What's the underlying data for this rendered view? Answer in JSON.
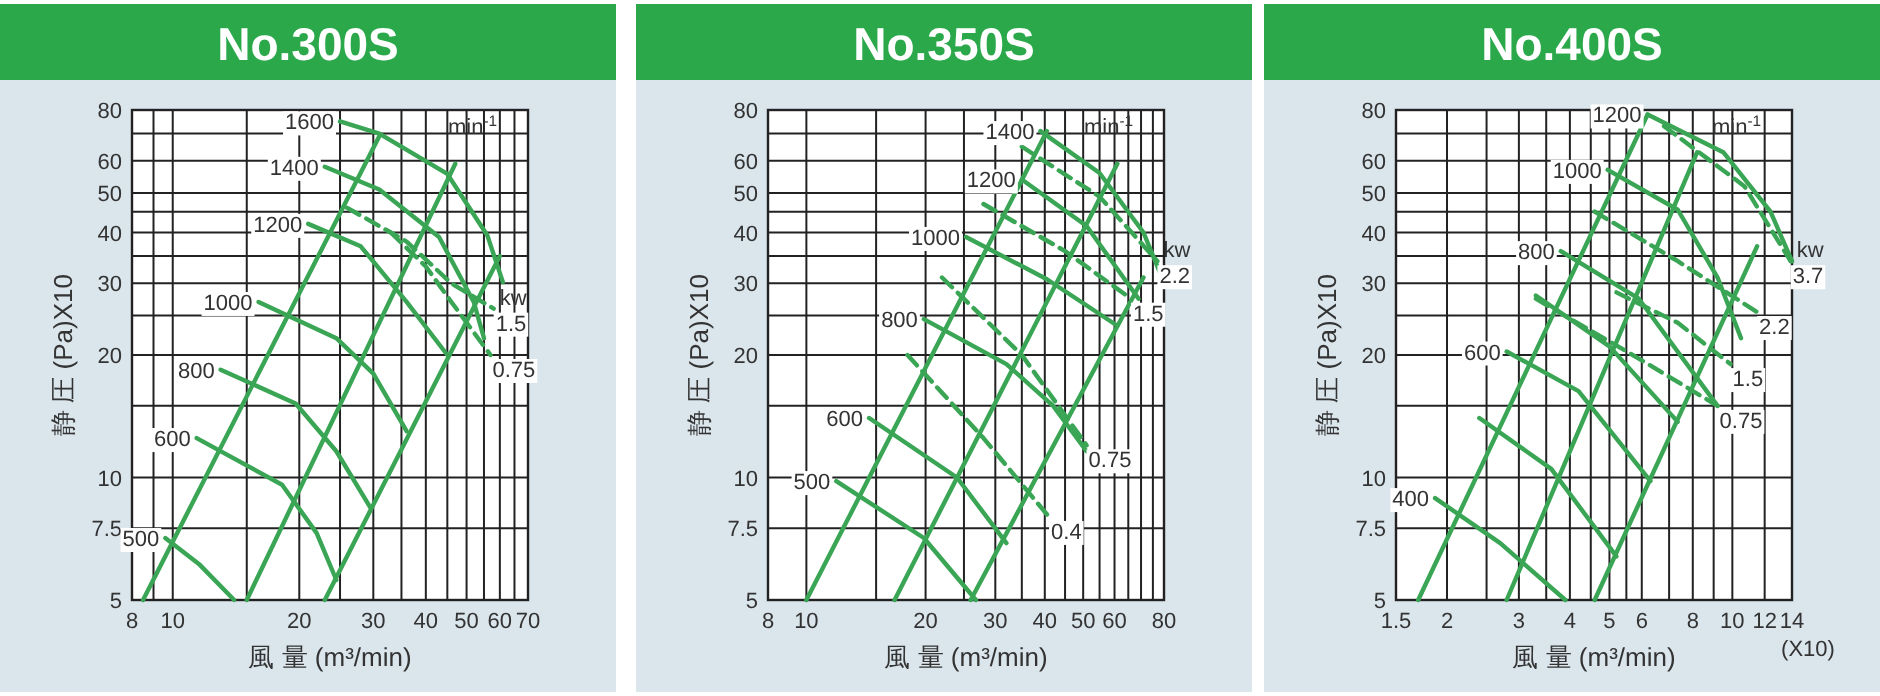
{
  "chart_data": [
    {
      "type": "line",
      "title": "No.300S",
      "xlabel": "風 量 (m³/min)",
      "ylabel": "静 圧 (Pa)X10",
      "log": "xy",
      "grid": true,
      "xlim": [
        8,
        70
      ],
      "xticks": [
        8,
        {
          "value": 9,
          "label": null
        },
        10,
        {
          "value": 15,
          "label": null
        },
        20,
        {
          "value": 25,
          "label": null
        },
        30,
        {
          "value": 35,
          "label": null
        },
        40,
        {
          "value": 45,
          "label": null
        },
        50,
        {
          "value": 55,
          "label": null
        },
        60,
        {
          "value": 65,
          "label": null
        },
        70
      ],
      "ylim": [
        5,
        80
      ],
      "yticks": [
        5,
        7.5,
        10,
        {
          "value": 15,
          "label": null
        },
        20,
        {
          "value": 25,
          "label": null
        },
        30,
        {
          "value": 35,
          "label": null
        },
        40,
        {
          "value": 45,
          "label": null
        },
        50,
        60,
        {
          "value": 70,
          "label": null
        },
        80
      ],
      "annotations": [
        "min$^{-1}$",
        "kw"
      ],
      "series": [
        {
          "name": "1600",
          "color": "#3aa655",
          "line_style": "solid",
          "x": [
            25,
            31,
            45,
            56,
            61
          ],
          "values": [
            75,
            70,
            55.7,
            39.4,
            30.2
          ]
        },
        {
          "name": "1400",
          "color": "#3aa655",
          "line_style": "solid",
          "x": [
            23,
            31,
            43,
            52,
            55
          ],
          "values": [
            58,
            51,
            39,
            27,
            22
          ]
        },
        {
          "name": "1200",
          "color": "#3aa655",
          "line_style": "solid",
          "x": [
            21,
            28,
            36,
            45
          ],
          "values": [
            42,
            37,
            27,
            20
          ]
        },
        {
          "name": "1000",
          "color": "#3aa655",
          "line_style": "solid",
          "x": [
            16,
            24.5,
            30,
            36
          ],
          "values": [
            27,
            22,
            18,
            13
          ]
        },
        {
          "name": "800",
          "color": "#3aa655",
          "line_style": "solid",
          "x": [
            13,
            19.6,
            24.5,
            29.6
          ],
          "values": [
            18.4,
            15.2,
            11.6,
            8.4
          ]
        },
        {
          "name": "600",
          "color": "#3aa655",
          "line_style": "solid",
          "x": [
            11.4,
            18.2,
            22,
            24.5
          ],
          "values": [
            12.5,
            9.6,
            7.3,
            5.6
          ]
        },
        {
          "name": "500",
          "color": "#3aa655",
          "line_style": "solid",
          "x": [
            9.6,
            11.6,
            14
          ],
          "values": [
            7.1,
            6.1,
            5
          ]
        },
        {
          "color": "#3aa655",
          "line_style": "solid",
          "x": [
            8.5,
            31
          ],
          "values": [
            5,
            69
          ]
        },
        {
          "color": "#3aa655",
          "line_style": "solid",
          "x": [
            15,
            47
          ],
          "values": [
            5,
            59
          ]
        },
        {
          "color": "#3aa655",
          "line_style": "solid",
          "x": [
            23,
            60
          ],
          "values": [
            5,
            35
          ]
        },
        {
          "name": "1.5",
          "color": "#3aa655",
          "line_style": "dashed",
          "x": [
            26,
            36,
            46,
            58
          ],
          "values": [
            46,
            38,
            30,
            26
          ]
        },
        {
          "name": "0.75",
          "color": "#3aa655",
          "line_style": "dashed",
          "x": [
            33,
            40,
            46,
            57
          ],
          "values": [
            40,
            33,
            27,
            20
          ]
        }
      ]
    },
    {
      "type": "line",
      "title": "No.350S",
      "xlabel": "風 量 (m³/min)",
      "ylabel": "静 圧 (Pa)X10",
      "log": "xy",
      "grid": true,
      "xlim": [
        8,
        80
      ],
      "xticks": [
        8,
        10,
        {
          "value": 15,
          "label": null
        },
        20,
        {
          "value": 25,
          "label": null
        },
        30,
        {
          "value": 35,
          "label": null
        },
        40,
        {
          "value": 45,
          "label": null
        },
        50,
        {
          "value": 55,
          "label": null
        },
        60,
        {
          "value": 65,
          "label": null
        },
        {
          "value": 70,
          "label": null
        },
        {
          "value": 75,
          "label": null
        },
        80
      ],
      "ylim": [
        5,
        80
      ],
      "yticks": [
        5,
        7.5,
        10,
        {
          "value": 15,
          "label": null
        },
        20,
        {
          "value": 25,
          "label": null
        },
        30,
        {
          "value": 35,
          "label": null
        },
        40,
        {
          "value": 45,
          "label": null
        },
        50,
        60,
        {
          "value": 70,
          "label": null
        },
        80
      ],
      "annotations": [
        "min$^{-1}$",
        "kw"
      ],
      "series": [
        {
          "name": "1400",
          "color": "#3aa655",
          "line_style": "solid",
          "x": [
            39,
            55,
            71,
            78
          ],
          "values": [
            71,
            56,
            40,
            32
          ]
        },
        {
          "name": "1200",
          "color": "#3aa655",
          "line_style": "solid",
          "x": [
            35,
            51,
            69
          ],
          "values": [
            54,
            41.5,
            27.5
          ]
        },
        {
          "name": "1000",
          "color": "#3aa655",
          "line_style": "solid",
          "x": [
            25.3,
            40.5,
            61
          ],
          "values": [
            39,
            30.7,
            23.6
          ]
        },
        {
          "name": "800",
          "color": "#3aa655",
          "line_style": "solid",
          "x": [
            19.8,
            32,
            42,
            51
          ],
          "values": [
            24.5,
            19,
            15,
            11.6
          ]
        },
        {
          "name": "600",
          "color": "#3aa655",
          "line_style": "solid",
          "x": [
            14.4,
            24,
            32
          ],
          "values": [
            14,
            10,
            6.9
          ]
        },
        {
          "name": "500",
          "color": "#3aa655",
          "line_style": "solid",
          "x": [
            11.9,
            19.8,
            26.8
          ],
          "values": [
            9.8,
            7.1,
            5
          ]
        },
        {
          "color": "#3aa655",
          "line_style": "solid",
          "x": [
            10,
            40.5
          ],
          "values": [
            5,
            71
          ]
        },
        {
          "color": "#3aa655",
          "line_style": "solid",
          "x": [
            16.7,
            61
          ],
          "values": [
            5,
            59
          ]
        },
        {
          "color": "#3aa655",
          "line_style": "solid",
          "x": [
            26,
            71
          ],
          "values": [
            5,
            31
          ]
        },
        {
          "name": "2.2",
          "color": "#3aa655",
          "line_style": "dashed",
          "x": [
            35,
            55,
            77
          ],
          "values": [
            65,
            49,
            34
          ]
        },
        {
          "name": "1.5",
          "color": "#3aa655",
          "line_style": "dashed",
          "x": [
            28,
            45,
            66
          ],
          "values": [
            47,
            36,
            27.5
          ]
        },
        {
          "name": "0.75",
          "color": "#3aa655",
          "line_style": "dashed",
          "x": [
            22,
            35,
            51
          ],
          "values": [
            31,
            20,
            12
          ]
        },
        {
          "name": "0.4",
          "color": "#3aa655",
          "line_style": "dashed",
          "x": [
            18,
            28,
            41
          ],
          "values": [
            20,
            12.5,
            8
          ]
        }
      ]
    },
    {
      "type": "line",
      "title": "No.400S",
      "xlabel": "風 量 (m³/min)",
      "ylabel": "静 圧 (Pa)X10",
      "log": "xy",
      "grid": true,
      "xlim": [
        1.5,
        14
      ],
      "xticks": [
        1.5,
        2,
        {
          "value": 2.5,
          "label": null
        },
        3,
        {
          "value": 3.5,
          "label": null
        },
        4,
        {
          "value": 4.5,
          "label": null
        },
        5,
        {
          "value": 5.5,
          "label": null
        },
        6,
        {
          "value": 7,
          "label": null
        },
        8,
        {
          "value": 9,
          "label": null
        },
        10,
        12,
        14
      ],
      "ylim": [
        5,
        80
      ],
      "yticks": [
        5,
        7.5,
        10,
        {
          "value": 15,
          "label": null
        },
        20,
        {
          "value": 25,
          "label": null
        },
        30,
        {
          "value": 35,
          "label": null
        },
        40,
        {
          "value": 45,
          "label": null
        },
        50,
        60,
        {
          "value": 70,
          "label": null
        },
        80
      ],
      "annotations": [
        "min$^{-1}$",
        "kw",
        "(X10)"
      ],
      "series": [
        {
          "name": "1200",
          "color": "#3aa655",
          "line_style": "solid",
          "x": [
            6.2,
            9.5,
            12.4,
            14
          ],
          "values": [
            78,
            63,
            45,
            34
          ]
        },
        {
          "name": "1000",
          "color": "#3aa655",
          "line_style": "solid",
          "x": [
            4.95,
            7.35,
            9.2,
            10.5
          ],
          "values": [
            57,
            45.5,
            31,
            22
          ]
        },
        {
          "name": "800",
          "color": "#3aa655",
          "line_style": "solid",
          "x": [
            3.8,
            5.9,
            9.2
          ],
          "values": [
            36,
            27.5,
            15
          ]
        },
        {
          "color": "#3aa655",
          "line_style": "solid",
          "x": [
            3.3,
            5,
            7.35
          ],
          "values": [
            28,
            21,
            13.7
          ]
        },
        {
          "name": "600",
          "color": "#3aa655",
          "line_style": "solid",
          "x": [
            2.8,
            4.2,
            6.3
          ],
          "values": [
            20.4,
            16.3,
            9.8
          ]
        },
        {
          "color": "#3aa655",
          "line_style": "solid",
          "x": [
            2.4,
            3.6,
            5.2
          ],
          "values": [
            14,
            10.5,
            6.4
          ]
        },
        {
          "name": "400",
          "color": "#3aa655",
          "line_style": "solid",
          "x": [
            1.87,
            2.7,
            3.9
          ],
          "values": [
            8.9,
            6.9,
            5
          ]
        },
        {
          "color": "#3aa655",
          "line_style": "solid",
          "x": [
            1.7,
            6.2
          ],
          "values": [
            5,
            78
          ]
        },
        {
          "color": "#3aa655",
          "line_style": "solid",
          "x": [
            2.8,
            8.2
          ],
          "values": [
            5,
            63
          ]
        },
        {
          "color": "#3aa655",
          "line_style": "solid",
          "x": [
            4.6,
            11.5
          ],
          "values": [
            5,
            37
          ]
        },
        {
          "name": "3.7",
          "color": "#3aa655",
          "line_style": "dashed",
          "x": [
            6.8,
            10.7,
            13.9
          ],
          "values": [
            73,
            52,
            34
          ]
        },
        {
          "name": "2.2",
          "color": "#3aa655",
          "line_style": "dashed",
          "x": [
            4.6,
            7.35,
            11.5
          ],
          "values": [
            45,
            34,
            25.5
          ]
        },
        {
          "name": "1.5",
          "color": "#3aa655",
          "line_style": "dashed",
          "x": [
            5.2,
            7.35,
            9.9
          ],
          "values": [
            28.5,
            24,
            19
          ]
        },
        {
          "name": "0.75",
          "color": "#3aa655",
          "line_style": "dashed",
          "x": [
            3.3,
            5.9,
            9.2
          ],
          "values": [
            27.5,
            19.6,
            15
          ]
        }
      ]
    }
  ]
}
